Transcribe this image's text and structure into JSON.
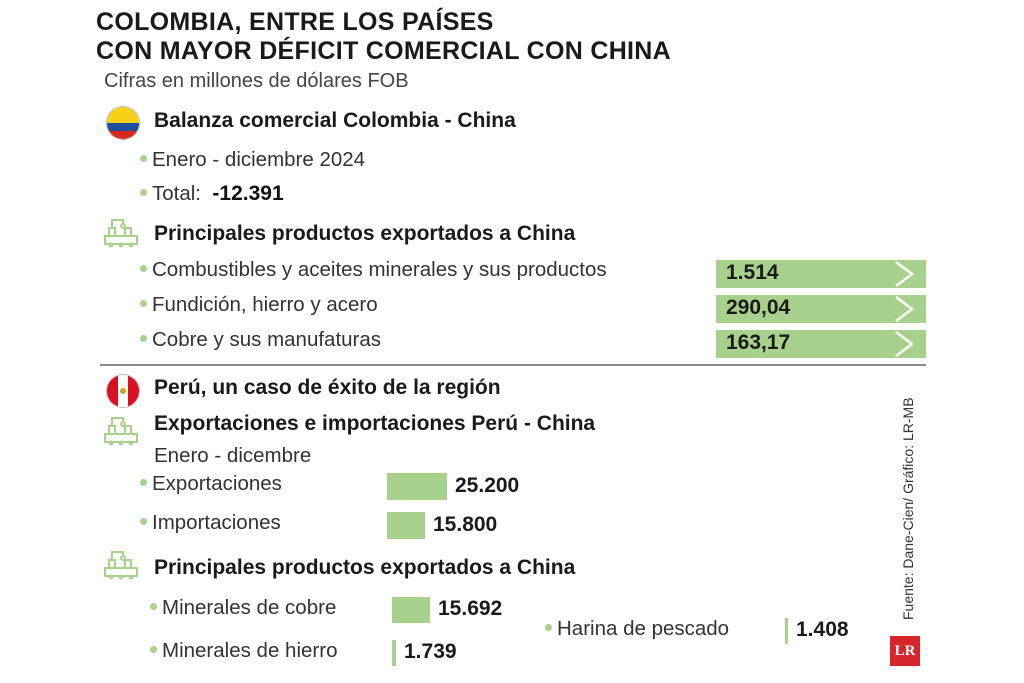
{
  "title": {
    "line1": "COLOMBIA, ENTRE LOS PAÍSES",
    "line2": "CON MAYOR DÉFICIT COMERCIAL CON CHINA"
  },
  "subtitle": "Cifras en millones de dólares FOB",
  "colombia": {
    "heading": "Balanza comercial Colombia - China",
    "period": "Enero - diciembre 2024",
    "total_label": "Total:",
    "total_value": "-12.391"
  },
  "colombia_exports": {
    "heading": "Principales productos exportados a China",
    "items": [
      {
        "label": "Combustibles y aceites minerales y sus productos",
        "value": "1.514"
      },
      {
        "label": "Fundición, hierro y acero",
        "value": "290,04"
      },
      {
        "label": "Cobre y sus manufaturas",
        "value": "163,17"
      }
    ]
  },
  "peru": {
    "heading": "Perú, un caso de éxito de la región",
    "trade_heading": "Exportaciones e importaciones Perú - China",
    "period": "Enero - dicembre",
    "rows": [
      {
        "label": "Exportaciones",
        "value": "25.200"
      },
      {
        "label": "Importaciones",
        "value": "15.800"
      }
    ],
    "exports_heading": "Principales productos exportados a China",
    "products": [
      {
        "label": "Minerales de cobre",
        "value": "15.692"
      },
      {
        "label": "Minerales de hierro",
        "value": "1.739"
      },
      {
        "label": "Harina de pescado",
        "value": "1.408"
      }
    ]
  },
  "source": "Fuente: Dane-Cien/ Gráfico: LR-MB",
  "logo": "LR",
  "colors": {
    "bar": "#a9d18e",
    "bullet": "#a9d18e",
    "logo": "#d7262b"
  },
  "icons": [
    "colombia-flag-icon",
    "factory-icon",
    "peru-flag-icon"
  ],
  "chart_data": [
    {
      "type": "bar",
      "categories": [
        "Combustibles y aceites minerales y sus productos",
        "Fundición, hierro y acero",
        "Cobre y sus manufaturas"
      ],
      "values": [
        1514,
        290.04,
        163.17
      ]
    },
    {
      "type": "bar",
      "categories": [
        "Exportaciones",
        "Importaciones"
      ],
      "values": [
        25200,
        15800
      ]
    },
    {
      "type": "bar",
      "categories": [
        "Minerales de cobre",
        "Minerales de hierro",
        "Harina de pescado"
      ],
      "values": [
        15692,
        1739,
        1408
      ]
    }
  ]
}
